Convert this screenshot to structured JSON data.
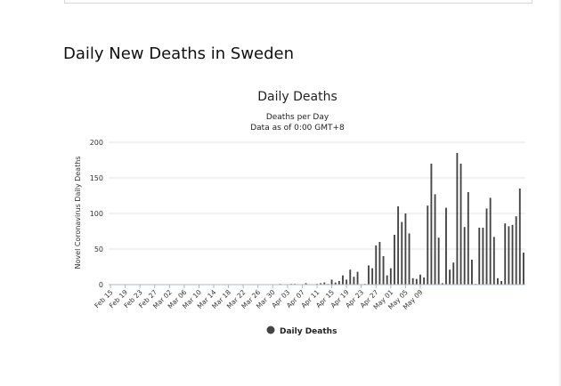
{
  "page": {
    "heading": "Daily New Deaths in Sweden"
  },
  "chart_data": {
    "type": "bar",
    "title": "Daily Deaths",
    "subtitle_lines": [
      "Deaths per Day",
      "Data as of 0:00 GMT+8"
    ],
    "ylabel": "Novel Coronavirus Daily Deaths",
    "xlabel": "",
    "ylim": [
      0,
      200
    ],
    "yticks": [
      0,
      50,
      100,
      150,
      200
    ],
    "grid": true,
    "legend_position": "bottom",
    "bar_color": "#444444",
    "x_tick_labels": [
      "Feb 15",
      "Feb 19",
      "Feb 23",
      "Feb 27",
      "Mar 02",
      "Mar 06",
      "Mar 10",
      "Mar 14",
      "Mar 18",
      "Mar 22",
      "Mar 26",
      "Mar 30",
      "Apr 03",
      "Apr 07",
      "Apr 11",
      "Apr 15",
      "Apr 19",
      "Apr 23",
      "Apr 27",
      "May 01",
      "May 05",
      "May 09"
    ],
    "series": [
      {
        "name": "Daily Deaths",
        "start_date": "Feb 15",
        "values": [
          0,
          0,
          0,
          0,
          0,
          0,
          0,
          0,
          0,
          0,
          0,
          0,
          0,
          0,
          0,
          0,
          0,
          0,
          0,
          0,
          0,
          0,
          0,
          0,
          0,
          0,
          0,
          0,
          0,
          0,
          0,
          0,
          0,
          0,
          0,
          0,
          0,
          0,
          0,
          0,
          0,
          0,
          0,
          0,
          0,
          0,
          1,
          0,
          0,
          1,
          1,
          0,
          0,
          2,
          0,
          0,
          1,
          2,
          3,
          1,
          7,
          3,
          5,
          13,
          7,
          21,
          11,
          18,
          0,
          1,
          27,
          23,
          55,
          60,
          40,
          13,
          23,
          70,
          110,
          88,
          100,
          72,
          9,
          8,
          14,
          10,
          111,
          170,
          127,
          66,
          2,
          108,
          21,
          31,
          185,
          170,
          81,
          130,
          35,
          1,
          80,
          80,
          107,
          122,
          67,
          9,
          5,
          86,
          82,
          84,
          96,
          135,
          45
        ]
      }
    ]
  }
}
